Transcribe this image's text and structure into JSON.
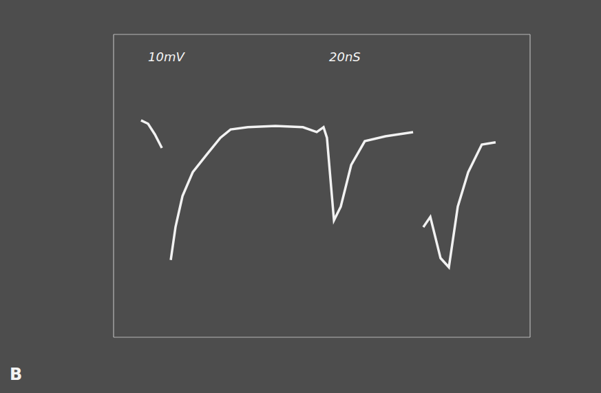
{
  "chart_data": {
    "type": "line",
    "panel": "B",
    "annotations": [
      "10mV",
      "20nS"
    ],
    "color": "#f2f2f2",
    "grid": true,
    "tick_labels": false,
    "xlim": [
      -20,
      200
    ],
    "xticks": [
      -20,
      0,
      20,
      40,
      60,
      80,
      100,
      120,
      140,
      160,
      180,
      200
    ],
    "ylim": [
      0,
      80
    ],
    "yticks": [
      0,
      10,
      20,
      30,
      40,
      50,
      60,
      70,
      80
    ],
    "x": [
      -5.5,
      -1.8,
      1.8,
      5.5,
      7,
      10.2,
      12.7,
      16.4,
      21.8,
      29.1,
      36.4,
      41.8,
      50.9,
      65.5,
      80,
      87.3,
      90.9,
      92.7,
      96.4,
      100,
      105.5,
      112.7,
      123.6,
      138.2,
      141,
      143.6,
      147.3,
      152.7,
      157.1,
      161.8,
      167.3,
      174.5,
      181.8
    ],
    "values": [
      57.3,
      56.4,
      53.6,
      50,
      null,
      20.4,
      29.1,
      37.3,
      43.6,
      48.2,
      52.7,
      54.9,
      55.5,
      55.8,
      55.5,
      54.2,
      55.5,
      52.7,
      30.9,
      34.5,
      45.5,
      51.8,
      53.1,
      54.2,
      null,
      29.1,
      31.8,
      20.9,
      18.5,
      34.5,
      43.6,
      50.9,
      51.5
    ]
  }
}
